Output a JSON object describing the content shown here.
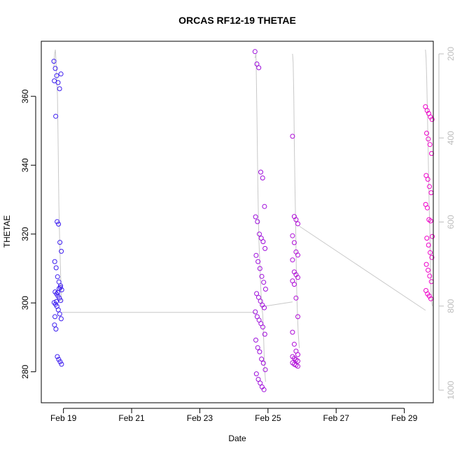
{
  "chart_data": {
    "type": "scatter",
    "title": "ORCAS RF12-19 THETAE",
    "xlabel": "Date",
    "ylabel": "THETAE",
    "x_ticks": [
      "Feb 19",
      "Feb 21",
      "Feb 23",
      "Feb 25",
      "Feb 27",
      "Feb 29"
    ],
    "x_tick_values": [
      19,
      21,
      23,
      25,
      27,
      29
    ],
    "xlim": [
      18.35,
      29.85
    ],
    "y_ticks": [
      280,
      300,
      320,
      340,
      360
    ],
    "ylim": [
      271,
      376
    ],
    "y2_ticks": [
      200,
      400,
      600,
      800,
      1000
    ],
    "y2_lim": [
      1030,
      170
    ],
    "grid": false,
    "colors": {
      "point_start": "#3b1ef0",
      "point_end": "#f000c8",
      "pressure_line": "#c8c8c8",
      "axis": "#000000",
      "y2_axis": "#bdbdbd"
    },
    "flights": [
      {
        "x_range": [
          18.72,
          18.95
        ],
        "values": [
          370.2,
          368.1,
          366.0,
          364.0,
          362.2,
          366.5,
          364.5,
          354.2,
          323.6,
          322.9,
          317.6,
          315.0,
          312.0,
          310.2,
          307.6,
          306.1,
          304.5,
          303.8,
          303.2,
          302.6,
          302.0,
          301.4,
          300.7,
          300.1,
          299.6,
          299.0,
          298.0,
          296.8,
          295.4,
          293.6,
          292.4,
          284.4,
          283.6,
          282.9,
          282.2,
          296.0,
          300.4,
          303.0,
          304.2,
          305.0
        ],
        "pressure": [
          230,
          200,
          190,
          220,
          260,
          300,
          420,
          560,
          640,
          700,
          760,
          790
        ]
      },
      {
        "x_range": [
          24.62,
          24.93
        ],
        "values": [
          373.0,
          369.4,
          368.3,
          338.0,
          336.3,
          328.0,
          325.0,
          323.6,
          320.0,
          318.8,
          317.8,
          315.8,
          313.8,
          312.0,
          310.0,
          307.7,
          306.0,
          304.0,
          302.7,
          301.6,
          300.5,
          299.4,
          298.6,
          297.4,
          296.0,
          295.0,
          294.0,
          293.0,
          290.9,
          289.2,
          287.0,
          285.8,
          283.7,
          282.5,
          280.6,
          279.4,
          277.8,
          276.7,
          275.6,
          274.8
        ],
        "pressure": [
          210,
          200,
          350,
          520,
          640,
          700,
          760,
          800,
          820,
          880,
          950,
          980
        ]
      },
      {
        "x_range": [
          25.72,
          25.92
        ],
        "values": [
          348.4,
          325.1,
          324.2,
          323.0,
          319.5,
          317.5,
          314.8,
          313.9,
          312.5,
          309.0,
          308.2,
          307.4,
          306.4,
          305.4,
          301.4,
          296.0,
          291.5,
          288.0,
          286.0,
          285.0,
          284.4,
          283.9,
          283.5,
          283.1,
          282.6,
          282.2,
          281.9,
          281.6
        ],
        "pressure": [
          200,
          220,
          300,
          420,
          520,
          600,
          700,
          780,
          820,
          860,
          880,
          900
        ]
      },
      {
        "x_range": [
          29.62,
          29.82
        ],
        "values": [
          357.0,
          355.9,
          355.0,
          354.0,
          353.3,
          349.3,
          347.6,
          346.0,
          343.4,
          337.0,
          335.9,
          333.8,
          332.0,
          328.6,
          327.6,
          324.2,
          323.8,
          319.3,
          318.8,
          316.8,
          314.6,
          313.2,
          311.2,
          309.5,
          307.8,
          306.2,
          303.6,
          302.6,
          302.0,
          301.2
        ],
        "pressure": [
          190,
          210,
          260,
          330,
          400,
          480,
          560,
          620,
          700,
          760,
          790,
          800
        ]
      }
    ],
    "pressure_connectors": [
      {
        "x": [
          18.95,
          24.62
        ],
        "p": [
          815,
          815
        ]
      },
      {
        "x": [
          24.93,
          25.72
        ],
        "p": [
          800,
          790
        ]
      },
      {
        "x": [
          25.92,
          29.62
        ],
        "p": [
          610,
          810
        ]
      }
    ]
  }
}
